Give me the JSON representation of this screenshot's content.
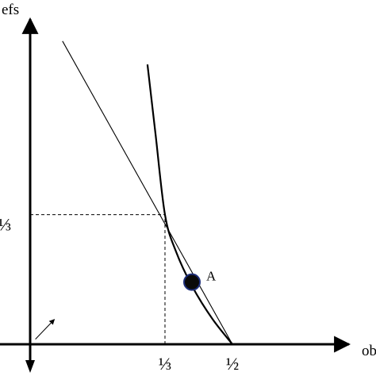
{
  "chart_data": {
    "type": "line",
    "title": "",
    "xlabel": "ob",
    "ylabel": "efs",
    "xlim": [
      0,
      0.8
    ],
    "ylim": [
      0,
      0.8
    ],
    "x_ticks": [
      {
        "value": 0.3333,
        "label": "⅓"
      },
      {
        "value": 0.5,
        "label": "½"
      }
    ],
    "y_ticks": [
      {
        "value": 0.3333,
        "label": "⅓"
      }
    ],
    "series": [
      {
        "style": "thin-straight",
        "points": [
          [
            0.08,
            0.78
          ],
          [
            0.5,
            0.0
          ]
        ]
      },
      {
        "style": "thick-curve",
        "points": [
          [
            0.29,
            0.72
          ],
          [
            0.31,
            0.54
          ],
          [
            0.3333,
            0.3333
          ],
          [
            0.36,
            0.24
          ],
          [
            0.4,
            0.15
          ],
          [
            0.45,
            0.066
          ],
          [
            0.5,
            0.0
          ]
        ]
      }
    ],
    "reference_lines": [
      {
        "from": [
          0,
          0.3333
        ],
        "to": [
          0.3333,
          0.3333
        ],
        "style": "dashed"
      },
      {
        "from": [
          0.3333,
          0
        ],
        "to": [
          0.3333,
          0.3333
        ],
        "style": "dashed"
      }
    ],
    "annotations": [
      {
        "label": "A",
        "point": [
          0.4,
          0.16
        ]
      }
    ],
    "arrow": {
      "from": [
        0.013,
        0.013
      ],
      "to": [
        0.06,
        0.064
      ]
    },
    "grid": false,
    "legend": "none"
  }
}
